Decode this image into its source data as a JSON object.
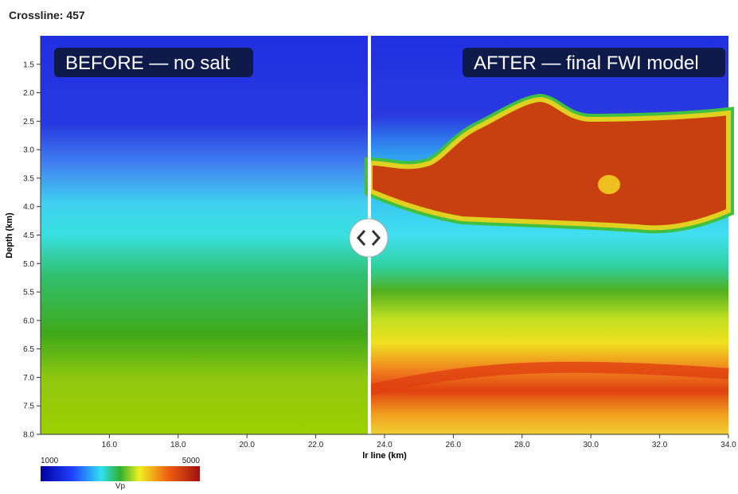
{
  "header": {
    "title": "Crossline: 457"
  },
  "chart_data": {
    "type": "heatmap-compare",
    "xlabel": "lr line (km)",
    "ylabel": "Depth (km)",
    "xlim": [
      14,
      34
    ],
    "ylim": [
      1,
      8
    ],
    "xticks": [
      {
        "value": 16,
        "label": "16.0"
      },
      {
        "value": 18,
        "label": "18.0"
      },
      {
        "value": 20,
        "label": "20.0"
      },
      {
        "value": 22,
        "label": "22.0"
      },
      {
        "value": 24,
        "label": "24.0"
      },
      {
        "value": 26,
        "label": "26.0"
      },
      {
        "value": 28,
        "label": "28.0"
      },
      {
        "value": 30,
        "label": "30.0"
      },
      {
        "value": 32,
        "label": "32.0"
      },
      {
        "value": 34,
        "label": "34.0"
      }
    ],
    "yticks": [
      {
        "value": 1.5,
        "label": "1.5"
      },
      {
        "value": 2,
        "label": "2.0"
      },
      {
        "value": 2.5,
        "label": "2.5"
      },
      {
        "value": 3,
        "label": "3.0"
      },
      {
        "value": 3.5,
        "label": "3.5"
      },
      {
        "value": 4,
        "label": "4.0"
      },
      {
        "value": 4.5,
        "label": "4.5"
      },
      {
        "value": 5,
        "label": "5.0"
      },
      {
        "value": 5.5,
        "label": "5.5"
      },
      {
        "value": 6,
        "label": "6.0"
      },
      {
        "value": 6.5,
        "label": "6.5"
      },
      {
        "value": 7,
        "label": "7.0"
      },
      {
        "value": 7.5,
        "label": "7.5"
      },
      {
        "value": 8,
        "label": "8.0"
      }
    ],
    "panels": {
      "before": "BEFORE — no salt",
      "after": "AFTER — final FWI model"
    },
    "colorbar": {
      "label": "Vp",
      "ticks": [
        1000,
        5000
      ]
    }
  }
}
